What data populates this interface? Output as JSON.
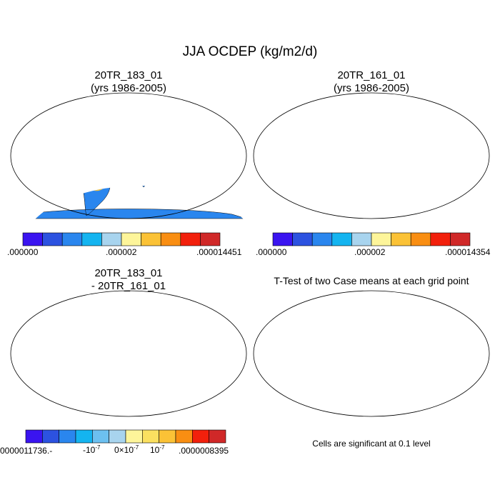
{
  "page_title": "JJA OCDEP (kg/m2/d)",
  "panels": {
    "top_left": {
      "title_line1": "20TR_183_01",
      "title_line2": "(yrs 1986-2005)"
    },
    "top_right": {
      "title_line1": "20TR_161_01",
      "title_line2": "(yrs 1986-2005)"
    },
    "bottom_left": {
      "title_line1": "20TR_183_01",
      "title_line2": "- 20TR_161_01"
    },
    "bottom_right": {
      "title_line1": "T-Test of two Case means at each grid point",
      "note": "Cells are significant at 0.1 level"
    }
  },
  "colorbars": {
    "top_left": {
      "min": ".000000",
      "mid": ".000002",
      "max": ".000014451",
      "colors": [
        "#3a14f0",
        "#2c52e0",
        "#2a86ee",
        "#14b4f0",
        "#a8d4ee",
        "#fdf59a",
        "#fbc236",
        "#f98e12",
        "#f2200c",
        "#d02828"
      ]
    },
    "top_right": {
      "min": ".000000",
      "mid": ".000002",
      "max": ".000014354",
      "colors": [
        "#3a14f0",
        "#2c52e0",
        "#2a86ee",
        "#14b4f0",
        "#a8d4ee",
        "#fdf59a",
        "#fbc236",
        "#f98e12",
        "#f2200c",
        "#d02828"
      ]
    },
    "bottom_left": {
      "min": "-.0000011736",
      "neg": "-10",
      "zero": "0×10",
      "pos": "10",
      "exp": "-7",
      "max": ".0000008395",
      "colors": [
        "#3a14f0",
        "#2c52e0",
        "#2a86ee",
        "#14b4f0",
        "#6cc0f0",
        "#a8d4ee",
        "#fdf59a",
        "#fbe060",
        "#fbc236",
        "#f98e12",
        "#f2200c",
        "#d02828"
      ]
    }
  },
  "colors": {
    "land": "#2a86ee",
    "ocean": "#ffffff",
    "significant": "#ff0000",
    "diff_land": "#fdf59a"
  }
}
